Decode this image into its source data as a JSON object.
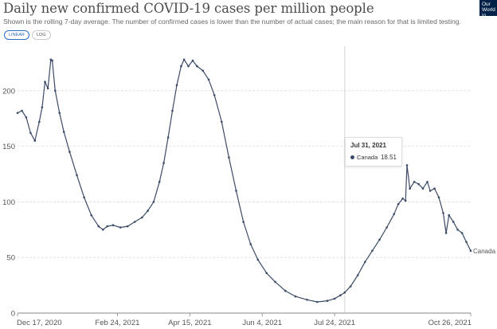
{
  "header": {
    "title": "Daily new confirmed COVID-19 cases per million people",
    "subtitle": "Shown is the rolling 7-day average. The number of confirmed cases is lower than the number of actual cases; the main reason for that is limited testing.",
    "logo_text": "Our World in Data"
  },
  "controls": {
    "linear_label": "LINEAR",
    "log_label": "LOG",
    "active": "linear"
  },
  "tooltip": {
    "date": "Jul 31, 2021",
    "series_name": "Canada",
    "value": "18.51"
  },
  "colors": {
    "line": "#3b4a66",
    "grid": "#dddddd",
    "axis": "#888888"
  },
  "chart_data": {
    "type": "line",
    "title": "Daily new confirmed COVID-19 cases per million people",
    "xlabel": "",
    "ylabel": "",
    "ylim": [
      0,
      240
    ],
    "y_ticks": [
      0,
      50,
      100,
      150,
      200
    ],
    "x_range": [
      "2020-12-17",
      "2021-10-26"
    ],
    "x_ticks": [
      {
        "date": "2020-12-17",
        "label": "Dec 17, 2020"
      },
      {
        "date": "2021-02-24",
        "label": "Feb 24, 2021"
      },
      {
        "date": "2021-04-15",
        "label": "Apr 15, 2021"
      },
      {
        "date": "2021-06-04",
        "label": "Jun 4, 2021"
      },
      {
        "date": "2021-07-24",
        "label": "Jul 24, 2021"
      },
      {
        "date": "2021-10-26",
        "label": "Oct 26, 2021"
      }
    ],
    "grid": "horizontal",
    "hover_date": "2021-07-31",
    "series": [
      {
        "name": "Canada",
        "end_label": "Canada",
        "points": [
          [
            "2020-12-17",
            180
          ],
          [
            "2020-12-20",
            182
          ],
          [
            "2020-12-23",
            176
          ],
          [
            "2020-12-26",
            162
          ],
          [
            "2020-12-29",
            155
          ],
          [
            "2021-01-01",
            172
          ],
          [
            "2021-01-03",
            185
          ],
          [
            "2021-01-05",
            208
          ],
          [
            "2021-01-07",
            202
          ],
          [
            "2021-01-09",
            228
          ],
          [
            "2021-01-10",
            227
          ],
          [
            "2021-01-12",
            200
          ],
          [
            "2021-01-15",
            180
          ],
          [
            "2021-01-18",
            163
          ],
          [
            "2021-01-22",
            145
          ],
          [
            "2021-01-27",
            124
          ],
          [
            "2021-02-01",
            104
          ],
          [
            "2021-02-06",
            88
          ],
          [
            "2021-02-11",
            78
          ],
          [
            "2021-02-14",
            75
          ],
          [
            "2021-02-17",
            78
          ],
          [
            "2021-02-21",
            79
          ],
          [
            "2021-02-26",
            77
          ],
          [
            "2021-03-03",
            78
          ],
          [
            "2021-03-08",
            82
          ],
          [
            "2021-03-13",
            86
          ],
          [
            "2021-03-17",
            92
          ],
          [
            "2021-03-21",
            100
          ],
          [
            "2021-03-25",
            118
          ],
          [
            "2021-03-28",
            135
          ],
          [
            "2021-03-31",
            158
          ],
          [
            "2021-04-03",
            182
          ],
          [
            "2021-04-06",
            205
          ],
          [
            "2021-04-09",
            222
          ],
          [
            "2021-04-11",
            228
          ],
          [
            "2021-04-14",
            222
          ],
          [
            "2021-04-17",
            227
          ],
          [
            "2021-04-20",
            222
          ],
          [
            "2021-04-24",
            218
          ],
          [
            "2021-04-28",
            210
          ],
          [
            "2021-05-02",
            196
          ],
          [
            "2021-05-07",
            172
          ],
          [
            "2021-05-12",
            140
          ],
          [
            "2021-05-17",
            110
          ],
          [
            "2021-05-22",
            82
          ],
          [
            "2021-05-27",
            62
          ],
          [
            "2021-06-01",
            48
          ],
          [
            "2021-06-07",
            36
          ],
          [
            "2021-06-13",
            28
          ],
          [
            "2021-06-20",
            20
          ],
          [
            "2021-06-27",
            15
          ],
          [
            "2021-07-05",
            12
          ],
          [
            "2021-07-12",
            10
          ],
          [
            "2021-07-19",
            11
          ],
          [
            "2021-07-24",
            13
          ],
          [
            "2021-07-28",
            16
          ],
          [
            "2021-07-31",
            18.51
          ],
          [
            "2021-08-04",
            24
          ],
          [
            "2021-08-09",
            34
          ],
          [
            "2021-08-14",
            46
          ],
          [
            "2021-08-19",
            56
          ],
          [
            "2021-08-24",
            66
          ],
          [
            "2021-08-29",
            77
          ],
          [
            "2021-09-03",
            89
          ],
          [
            "2021-09-06",
            98
          ],
          [
            "2021-09-09",
            103
          ],
          [
            "2021-09-11",
            101
          ],
          [
            "2021-09-12",
            133
          ],
          [
            "2021-09-14",
            112
          ],
          [
            "2021-09-17",
            118
          ],
          [
            "2021-09-20",
            116
          ],
          [
            "2021-09-23",
            112
          ],
          [
            "2021-09-26",
            118
          ],
          [
            "2021-09-28",
            110
          ],
          [
            "2021-10-01",
            112
          ],
          [
            "2021-10-04",
            104
          ],
          [
            "2021-10-07",
            90
          ],
          [
            "2021-10-09",
            72
          ],
          [
            "2021-10-11",
            88
          ],
          [
            "2021-10-14",
            82
          ],
          [
            "2021-10-17",
            75
          ],
          [
            "2021-10-20",
            72
          ],
          [
            "2021-10-23",
            64
          ],
          [
            "2021-10-26",
            56
          ]
        ]
      }
    ]
  }
}
